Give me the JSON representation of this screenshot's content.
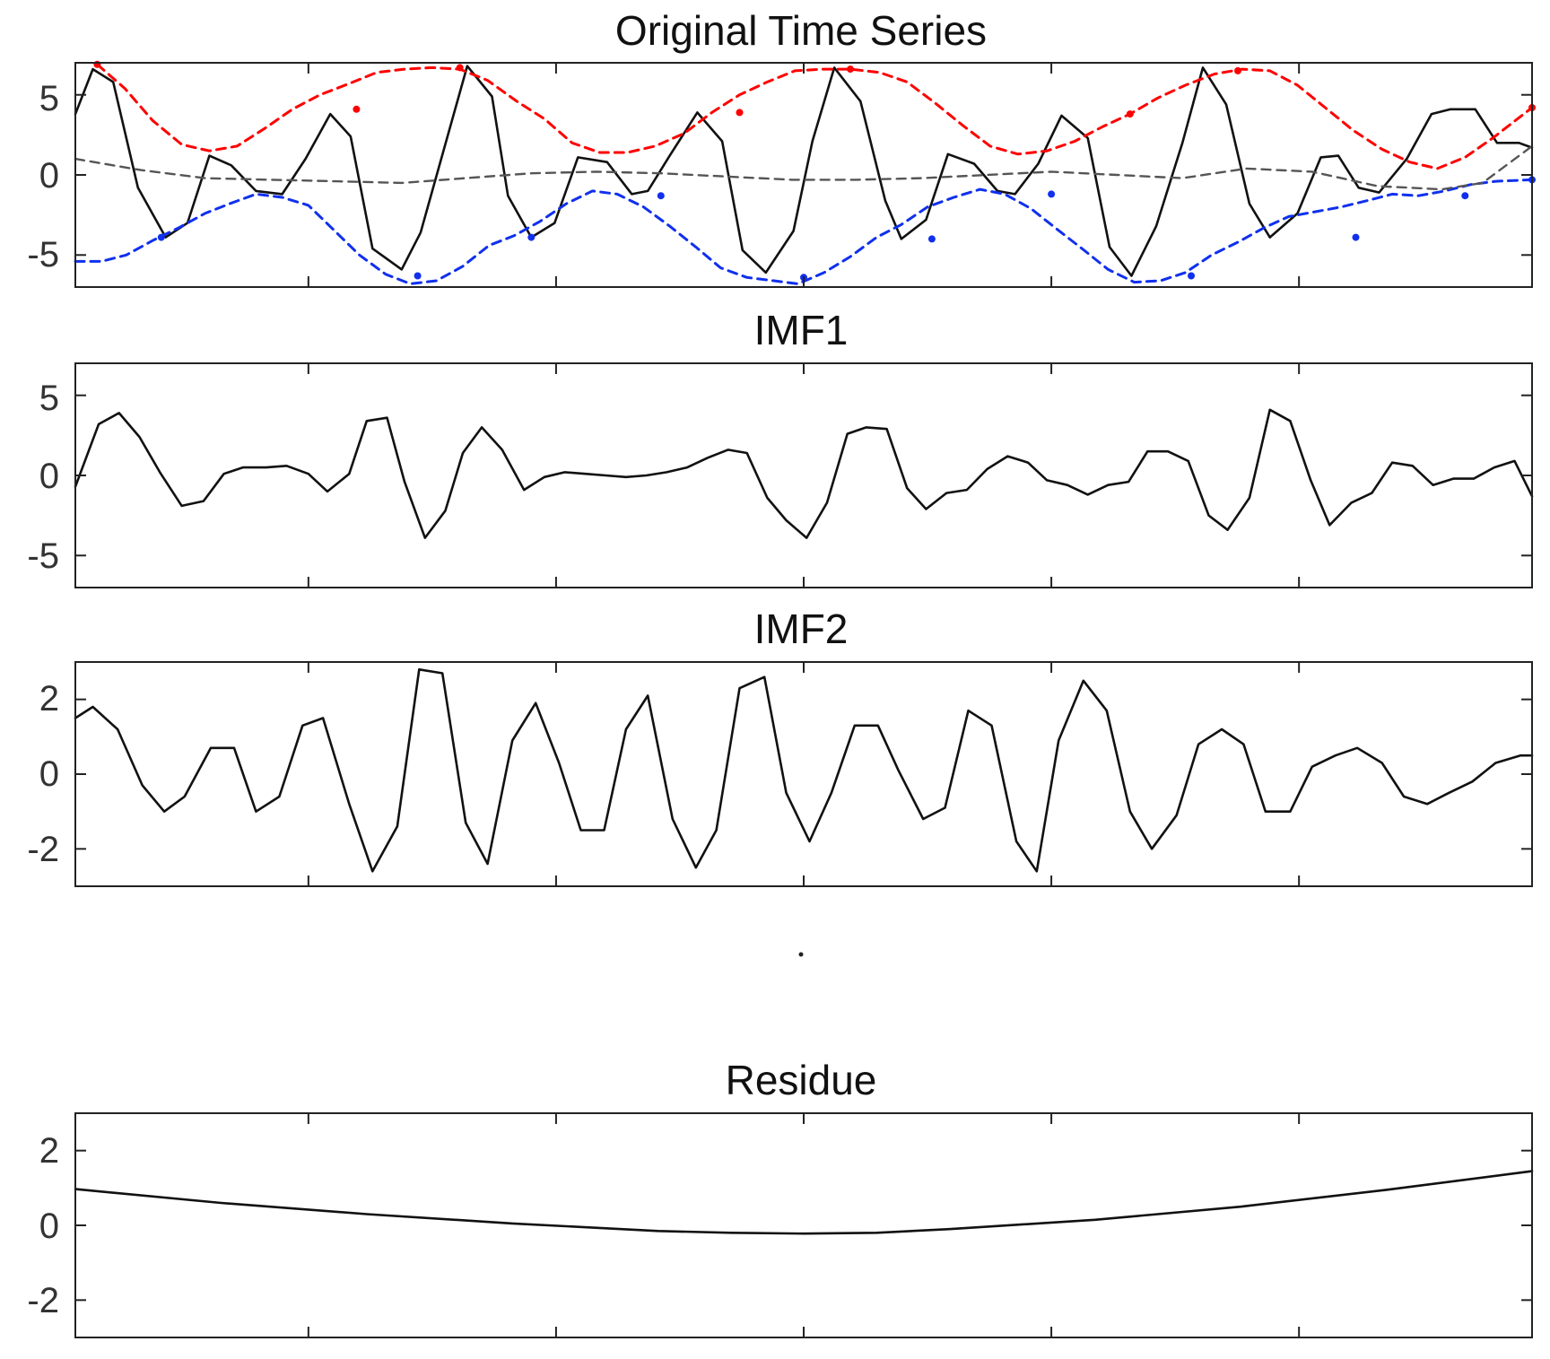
{
  "chart_data": [
    {
      "type": "line",
      "title": "Original Time Series",
      "xlim": [
        0,
        100
      ],
      "ylim": [
        -7,
        7
      ],
      "yticks": [
        5,
        0,
        -5
      ],
      "ytick_labels": [
        "5",
        "0",
        "-5"
      ],
      "xticks": [
        16,
        33,
        50,
        67,
        84
      ],
      "grid": false,
      "series": [
        {
          "key": "signal",
          "color": "#111111",
          "style": "solid",
          "x": [
            0,
            1.2,
            2.6,
            4.3,
            6.2,
            7.7,
            9.2,
            10.7,
            12.4,
            14.2,
            15.8,
            17.5,
            18.9,
            20.4,
            22.4,
            23.7,
            25.3,
            26.9,
            28.6,
            29.7,
            31.3,
            32.9,
            34.5,
            36.5,
            38.2,
            39.3,
            40.8,
            42.7,
            44.4,
            45.8,
            47.4,
            49.3,
            50.6,
            52.1,
            53.9,
            55.6,
            56.7,
            58.4,
            59.9,
            61.7,
            63.3,
            64.5,
            66.1,
            67.7,
            69.5,
            71.0,
            72.5,
            74.2,
            76.0,
            77.4,
            79.0,
            80.6,
            82.0,
            83.9,
            85.5,
            86.7,
            88.1,
            89.5,
            91.4,
            93.1,
            94.4,
            96.1,
            97.6,
            99.1,
            100
          ],
          "y": [
            3.8,
            6.6,
            5.8,
            -0.8,
            -3.9,
            -3.0,
            1.2,
            0.6,
            -1.0,
            -1.2,
            1.0,
            3.8,
            2.4,
            -4.6,
            -5.9,
            -3.6,
            1.6,
            6.8,
            4.9,
            -1.3,
            -3.9,
            -3.0,
            1.1,
            0.8,
            -1.2,
            -1.0,
            1.2,
            3.9,
            2.1,
            -4.7,
            -6.1,
            -3.5,
            2.1,
            6.7,
            4.6,
            -1.6,
            -4.0,
            -2.8,
            1.3,
            0.7,
            -1.0,
            -1.2,
            0.7,
            3.7,
            2.3,
            -4.5,
            -6.3,
            -3.2,
            2.0,
            6.7,
            4.4,
            -1.8,
            -3.9,
            -2.4,
            1.1,
            1.2,
            -0.8,
            -1.1,
            1.0,
            3.8,
            4.1,
            4.1,
            2.0,
            2.0,
            1.7
          ]
        },
        {
          "key": "upper_envelope",
          "color": "#ff0000",
          "style": "dashed",
          "x": [
            1.5,
            3.4,
            5.3,
            7.3,
            9.2,
            11.1,
            13.0,
            14.9,
            16.8,
            18.8,
            20.7,
            22.6,
            24.5,
            26.4,
            28.3,
            30.3,
            32.2,
            34.1,
            36.0,
            37.9,
            39.8,
            41.8,
            43.7,
            45.6,
            47.5,
            49.4,
            51.3,
            53.2,
            55.2,
            57.1,
            59.0,
            60.9,
            62.8,
            64.7,
            66.7,
            68.6,
            70.5,
            72.4,
            74.3,
            76.2,
            78.2,
            80.1,
            82.0,
            83.9,
            85.8,
            87.7,
            89.7,
            91.6,
            93.5,
            95.4,
            97.3,
            100
          ],
          "y": [
            6.9,
            5.4,
            3.4,
            1.9,
            1.5,
            1.8,
            2.9,
            4.1,
            5.0,
            5.7,
            6.4,
            6.6,
            6.7,
            6.6,
            5.9,
            4.6,
            3.5,
            2.0,
            1.4,
            1.4,
            1.8,
            2.6,
            3.9,
            5.0,
            5.8,
            6.5,
            6.6,
            6.6,
            6.4,
            5.8,
            4.5,
            3.1,
            1.8,
            1.3,
            1.5,
            2.1,
            3.0,
            3.8,
            4.8,
            5.6,
            6.3,
            6.6,
            6.5,
            5.6,
            4.2,
            2.8,
            1.6,
            0.8,
            0.4,
            1.1,
            2.3,
            4.2
          ]
        },
        {
          "key": "lower_envelope",
          "color": "#1030ee",
          "style": "dashed",
          "x": [
            0,
            1.8,
            3.5,
            5.3,
            7.1,
            8.9,
            10.6,
            12.4,
            14.2,
            16.0,
            17.7,
            19.5,
            21.3,
            23.0,
            24.8,
            26.6,
            28.4,
            30.1,
            31.9,
            33.7,
            35.5,
            37.2,
            39.0,
            40.8,
            42.6,
            44.3,
            46.1,
            47.9,
            49.6,
            51.4,
            53.2,
            55.0,
            56.7,
            58.5,
            60.3,
            62.1,
            63.8,
            65.6,
            67.4,
            69.1,
            70.9,
            72.7,
            74.5,
            76.2,
            78.0,
            79.8,
            81.6,
            83.3,
            85.1,
            86.9,
            88.7,
            90.4,
            92.2,
            94.0,
            95.8,
            97.5,
            100
          ],
          "y": [
            -5.4,
            -5.4,
            -5.0,
            -4.1,
            -3.3,
            -2.4,
            -1.8,
            -1.2,
            -1.4,
            -1.9,
            -3.4,
            -5.0,
            -6.2,
            -6.8,
            -6.6,
            -5.7,
            -4.4,
            -3.8,
            -2.9,
            -1.8,
            -1.0,
            -1.2,
            -2.0,
            -3.2,
            -4.5,
            -5.8,
            -6.4,
            -6.6,
            -6.8,
            -6.1,
            -5.1,
            -3.9,
            -3.1,
            -2.0,
            -1.4,
            -0.9,
            -1.2,
            -2.1,
            -3.4,
            -4.6,
            -5.9,
            -6.7,
            -6.6,
            -6.1,
            -5.0,
            -4.2,
            -3.3,
            -2.6,
            -2.3,
            -2.0,
            -1.6,
            -1.2,
            -1.3,
            -1.0,
            -0.6,
            -0.4,
            -0.3
          ]
        },
        {
          "key": "mean",
          "color": "#555555",
          "style": "dashed",
          "x": [
            0,
            4.5,
            8.9,
            13.4,
            17.9,
            22.4,
            26.8,
            31.3,
            35.8,
            40.2,
            44.7,
            49.2,
            53.6,
            58.1,
            62.6,
            67.0,
            71.5,
            76.0,
            80.4,
            84.9,
            89.4,
            93.8,
            96.6,
            100
          ],
          "y": [
            1.0,
            0.3,
            -0.2,
            -0.3,
            -0.4,
            -0.5,
            -0.2,
            0.1,
            0.2,
            0.1,
            -0.1,
            -0.3,
            -0.3,
            -0.2,
            0.0,
            0.2,
            0.0,
            -0.2,
            0.4,
            0.2,
            -0.7,
            -0.9,
            -0.5,
            1.8
          ]
        }
      ],
      "markers": [
        {
          "color": "#ff0000",
          "x": [
            1.5,
            19.3,
            26.4,
            45.6,
            53.2,
            72.4,
            79.8,
            100
          ],
          "y": [
            6.9,
            4.1,
            6.7,
            3.9,
            6.6,
            3.8,
            6.5,
            4.2
          ]
        },
        {
          "color": "#1030ee",
          "x": [
            5.9,
            23.5,
            31.3,
            40.2,
            50.0,
            58.8,
            67.0,
            76.6,
            87.9,
            95.4,
            100
          ],
          "y": [
            -3.9,
            -6.3,
            -3.9,
            -1.3,
            -6.4,
            -4.0,
            -1.2,
            -6.3,
            -3.9,
            -1.3,
            -0.3
          ]
        }
      ]
    },
    {
      "type": "line",
      "title": "IMF1",
      "xlim": [
        0,
        100
      ],
      "ylim": [
        -7,
        7
      ],
      "yticks": [
        5,
        0,
        -5
      ],
      "ytick_labels": [
        "5",
        "0",
        "-5"
      ],
      "xticks": [
        16,
        33,
        50,
        67,
        84
      ],
      "grid": false,
      "series": [
        {
          "key": "imf1",
          "color": "#111111",
          "style": "solid",
          "x": [
            0,
            1.6,
            3.0,
            4.4,
            5.8,
            7.3,
            8.8,
            10.2,
            11.5,
            13.1,
            14.5,
            16.0,
            17.3,
            18.8,
            20.0,
            21.4,
            22.6,
            24.0,
            25.4,
            26.6,
            27.9,
            29.3,
            30.8,
            32.2,
            33.6,
            35.0,
            36.4,
            37.8,
            39.2,
            40.6,
            42.0,
            43.4,
            44.8,
            46.1,
            47.5,
            48.8,
            50.2,
            51.6,
            53.0,
            54.3,
            55.7,
            57.1,
            58.4,
            59.8,
            61.2,
            62.6,
            64.0,
            65.4,
            66.7,
            68.1,
            69.5,
            70.9,
            72.3,
            73.6,
            75.0,
            76.4,
            77.8,
            79.1,
            80.6,
            82.0,
            83.4,
            84.8,
            86.1,
            87.6,
            89.0,
            90.4,
            91.8,
            93.2,
            94.6,
            96.0,
            97.4,
            98.8,
            100
          ],
          "y": [
            -0.7,
            3.2,
            3.9,
            2.4,
            0.2,
            -1.9,
            -1.6,
            0.1,
            0.5,
            0.5,
            0.6,
            0.1,
            -1.0,
            0.1,
            3.4,
            3.6,
            -0.4,
            -3.9,
            -2.2,
            1.4,
            3.0,
            1.6,
            -0.9,
            -0.1,
            0.2,
            0.1,
            0.0,
            -0.1,
            0.0,
            0.2,
            0.5,
            1.1,
            1.6,
            1.4,
            -1.4,
            -2.8,
            -3.9,
            -1.7,
            2.6,
            3.0,
            2.9,
            -0.8,
            -2.1,
            -1.1,
            -0.9,
            0.4,
            1.2,
            0.8,
            -0.3,
            -0.6,
            -1.2,
            -0.6,
            -0.4,
            1.5,
            1.5,
            0.9,
            -2.5,
            -3.4,
            -1.4,
            4.1,
            3.4,
            -0.3,
            -3.1,
            -1.7,
            -1.1,
            0.8,
            0.6,
            -0.6,
            -0.2,
            -0.2,
            0.5,
            0.9,
            -1.3
          ]
        }
      ]
    },
    {
      "type": "line",
      "title": "IMF2",
      "xlim": [
        0,
        100
      ],
      "ylim": [
        -3,
        3
      ],
      "yticks": [
        2,
        0,
        -2
      ],
      "ytick_labels": [
        "2",
        "0",
        "-2"
      ],
      "xticks": [
        16,
        33,
        50,
        67,
        84
      ],
      "grid": false,
      "series": [
        {
          "key": "imf2",
          "color": "#111111",
          "style": "solid",
          "x": [
            0,
            1.2,
            2.9,
            4.6,
            6.1,
            7.5,
            9.3,
            10.9,
            12.4,
            14.0,
            15.6,
            17.0,
            18.8,
            20.4,
            22.1,
            23.6,
            25.2,
            26.8,
            28.3,
            30.0,
            31.6,
            33.2,
            34.7,
            36.3,
            37.8,
            39.3,
            41.0,
            42.6,
            44.0,
            45.6,
            47.3,
            48.8,
            50.4,
            51.9,
            53.5,
            55.1,
            56.5,
            58.2,
            59.7,
            61.3,
            62.9,
            64.6,
            66.0,
            67.5,
            69.2,
            70.8,
            72.4,
            73.9,
            75.6,
            77.1,
            78.7,
            80.2,
            81.7,
            83.4,
            84.9,
            86.5,
            88.0,
            89.7,
            91.2,
            92.8,
            94.3,
            95.9,
            97.5,
            99.2,
            100
          ],
          "y": [
            1.5,
            1.8,
            1.2,
            -0.3,
            -1.0,
            -0.6,
            0.7,
            0.7,
            -1.0,
            -0.6,
            1.3,
            1.5,
            -0.8,
            -2.6,
            -1.4,
            2.8,
            2.7,
            -1.3,
            -2.4,
            0.9,
            1.9,
            0.3,
            -1.5,
            -1.5,
            1.2,
            2.1,
            -1.2,
            -2.5,
            -1.5,
            2.3,
            2.6,
            -0.5,
            -1.8,
            -0.5,
            1.3,
            1.3,
            0.1,
            -1.2,
            -0.9,
            1.7,
            1.3,
            -1.8,
            -2.6,
            0.9,
            2.5,
            1.7,
            -1.0,
            -2.0,
            -1.1,
            0.8,
            1.2,
            0.8,
            -1.0,
            -1.0,
            0.2,
            0.5,
            0.7,
            0.3,
            -0.6,
            -0.8,
            -0.5,
            -0.2,
            0.3,
            0.5,
            0.5
          ]
        }
      ]
    },
    {
      "type": "line",
      "title": "Residue",
      "xlim": [
        0,
        100
      ],
      "ylim": [
        -3,
        3
      ],
      "yticks": [
        2,
        0,
        -2
      ],
      "ytick_labels": [
        "2",
        "0",
        "-2"
      ],
      "xticks": [
        16,
        33,
        50,
        67,
        84
      ],
      "grid": false,
      "series": [
        {
          "key": "residue",
          "color": "#111111",
          "style": "solid",
          "x": [
            0,
            10,
            20,
            30,
            40,
            45,
            50,
            55,
            60,
            70,
            80,
            90,
            100
          ],
          "y": [
            0.97,
            0.6,
            0.3,
            0.05,
            -0.15,
            -0.2,
            -0.22,
            -0.2,
            -0.1,
            0.15,
            0.5,
            0.95,
            1.45
          ]
        }
      ]
    }
  ]
}
